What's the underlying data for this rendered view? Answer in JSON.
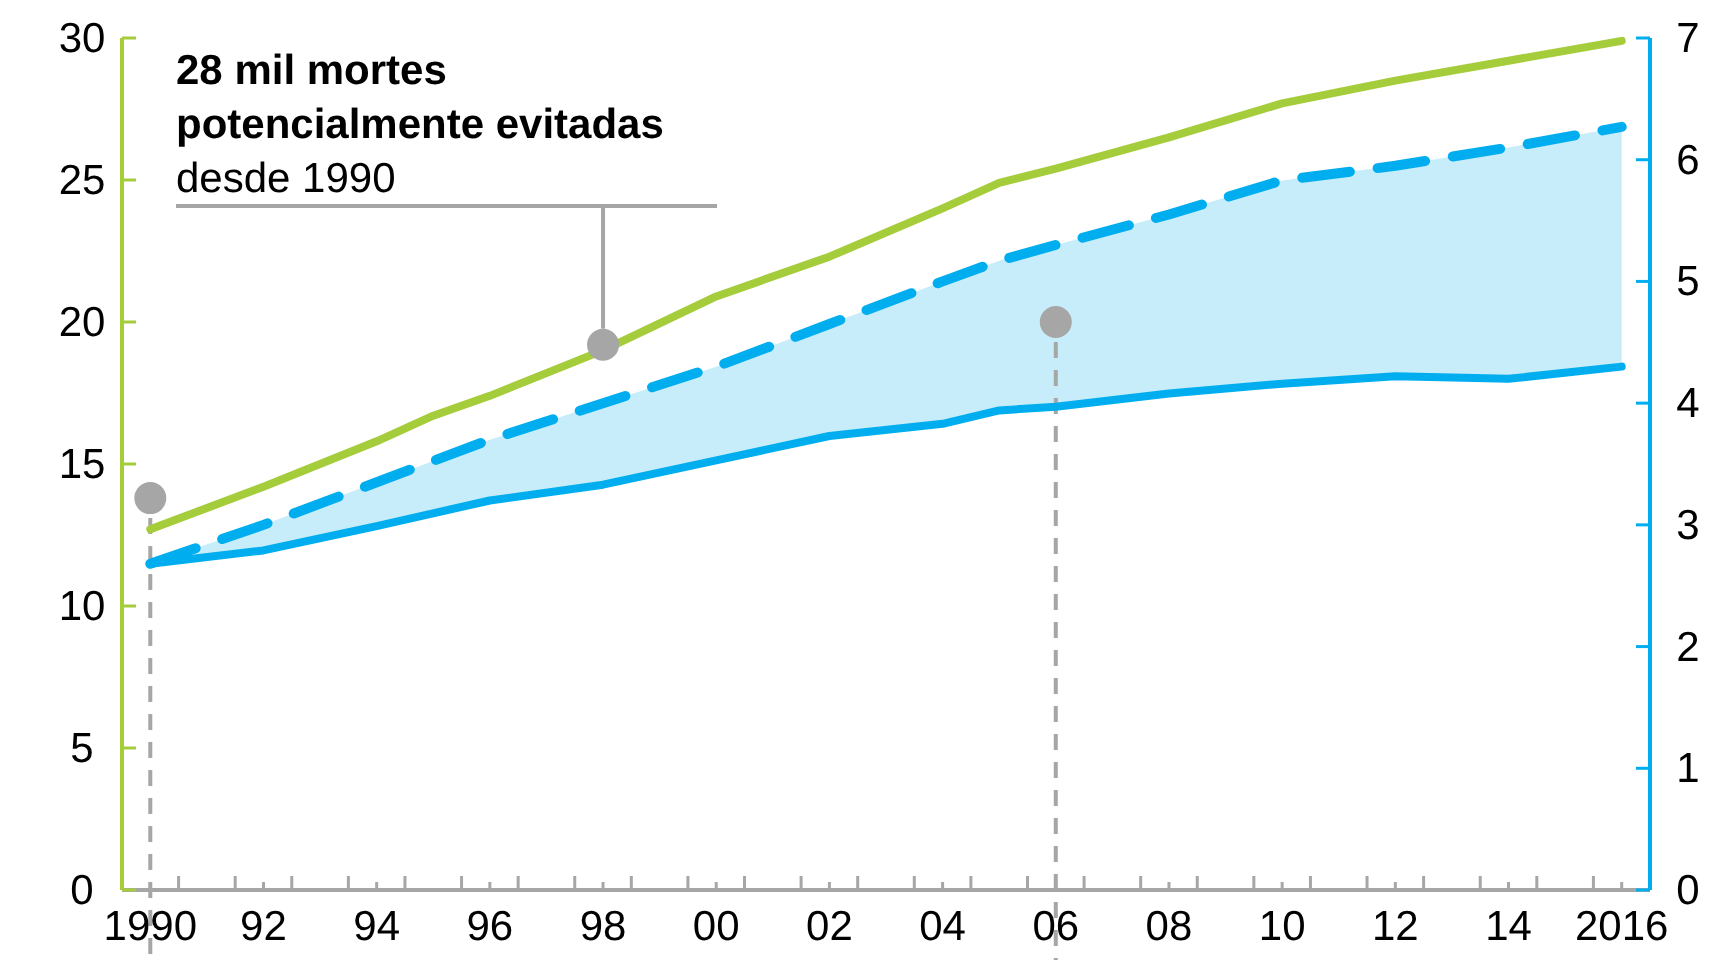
{
  "chart_data": {
    "type": "line",
    "annotations": [
      {
        "text": "28 mil mortes\npotencialmente evitadas\ndesde 1990",
        "x": 1998,
        "y": 19.2
      }
    ],
    "xlim": [
      1989.5,
      2016.5
    ],
    "xticks": [
      {
        "value": 1990,
        "label": "1990"
      },
      {
        "value": 1992,
        "label": "92"
      },
      {
        "value": 1994,
        "label": "94"
      },
      {
        "value": 1996,
        "label": "96"
      },
      {
        "value": 1998,
        "label": "98"
      },
      {
        "value": 2000,
        "label": "00"
      },
      {
        "value": 2002,
        "label": "02"
      },
      {
        "value": 2004,
        "label": "04"
      },
      {
        "value": 2006,
        "label": "06"
      },
      {
        "value": 2008,
        "label": "08"
      },
      {
        "value": 2010,
        "label": "10"
      },
      {
        "value": 2012,
        "label": "12"
      },
      {
        "value": 2014,
        "label": "14"
      },
      {
        "value": 2016,
        "label": "2016"
      },
      {
        "value": 1990.5,
        "label": null
      },
      {
        "value": 1991.5,
        "label": null
      },
      {
        "value": 1992.5,
        "label": null
      },
      {
        "value": 1993.5,
        "label": null
      },
      {
        "value": 1994.5,
        "label": null
      },
      {
        "value": 1995.5,
        "label": null
      },
      {
        "value": 1996.5,
        "label": null
      },
      {
        "value": 1997.5,
        "label": null
      },
      {
        "value": 1998.5,
        "label": null
      },
      {
        "value": 1999.5,
        "label": null
      },
      {
        "value": 2000.5,
        "label": null
      },
      {
        "value": 2001.5,
        "label": null
      },
      {
        "value": 2002.5,
        "label": null
      },
      {
        "value": 2003.5,
        "label": null
      },
      {
        "value": 2004.5,
        "label": null
      },
      {
        "value": 2005.5,
        "label": null
      },
      {
        "value": 2006.5,
        "label": null
      },
      {
        "value": 2007.5,
        "label": null
      },
      {
        "value": 2008.5,
        "label": null
      },
      {
        "value": 2009.5,
        "label": null
      },
      {
        "value": 2010.5,
        "label": null
      },
      {
        "value": 2011.5,
        "label": null
      },
      {
        "value": 2012.5,
        "label": null
      },
      {
        "value": 2013.5,
        "label": null
      },
      {
        "value": 2014.5,
        "label": null
      },
      {
        "value": 2015.5,
        "label": null
      }
    ],
    "ylim": [
      0,
      30
    ],
    "yticks": [
      0,
      5,
      10,
      15,
      20,
      25,
      30
    ],
    "y2lim": [
      0,
      7
    ],
    "y2ticks": [
      0,
      1,
      2,
      3,
      4,
      5,
      6,
      7
    ],
    "ref_lines": [
      {
        "axis": "x",
        "value": 1990,
        "color": "#a6a6a6",
        "line_style": "dashed"
      },
      {
        "axis": "x",
        "value": 2006,
        "color": "#a6a6a6",
        "line_style": "dashed"
      }
    ],
    "series": [
      {
        "color": "#a5cc3a",
        "line_style": "solid",
        "x": [
          1990,
          1992,
          1994,
          1995,
          1996,
          1998,
          2000,
          2002,
          2004,
          2005,
          2006,
          2008,
          2010,
          2012,
          2014,
          2016
        ],
        "values": [
          12.7,
          14.2,
          15.8,
          16.7,
          17.4,
          19.0,
          20.9,
          22.3,
          24.0,
          24.9,
          25.4,
          26.5,
          27.7,
          28.5,
          29.2,
          29.9
        ]
      },
      {
        "color": "#00aeef",
        "axis": "y2",
        "line_style": "dashed",
        "x": [
          1990,
          1992,
          1994,
          1996,
          1998,
          2000,
          2002,
          2004,
          2005,
          2006,
          2008,
          2010,
          2012,
          2014,
          2016
        ],
        "values": [
          2.68,
          3.0,
          3.35,
          3.7,
          4.0,
          4.3,
          4.65,
          5.0,
          5.17,
          5.3,
          5.55,
          5.83,
          5.95,
          6.1,
          6.27
        ]
      },
      {
        "color": "#00aeef",
        "axis": "y2",
        "line_style": "solid",
        "x": [
          1990,
          1992,
          1994,
          1996,
          1998,
          2000,
          2002,
          2004,
          2005,
          2006,
          2008,
          2010,
          2012,
          2014,
          2016
        ],
        "values": [
          2.68,
          2.79,
          2.99,
          3.2,
          3.33,
          3.53,
          3.73,
          3.83,
          3.94,
          3.97,
          4.08,
          4.16,
          4.22,
          4.2,
          4.3
        ],
        "lower": [
          2.68,
          2.79,
          2.99,
          3.2,
          3.33,
          3.53,
          3.73,
          3.83,
          3.94,
          3.97,
          4.08,
          4.16,
          4.22,
          4.2,
          4.3
        ],
        "upper": [
          2.68,
          3.0,
          3.35,
          3.7,
          4.0,
          4.3,
          4.65,
          5.0,
          5.17,
          5.3,
          5.55,
          5.83,
          5.95,
          6.1,
          6.27
        ]
      },
      {
        "type": "scatter",
        "color": "#a6a6a6",
        "marker": "circle",
        "x": [
          1990,
          1998,
          2006
        ],
        "values": [
          13.8,
          19.2,
          20.0
        ]
      }
    ]
  }
}
